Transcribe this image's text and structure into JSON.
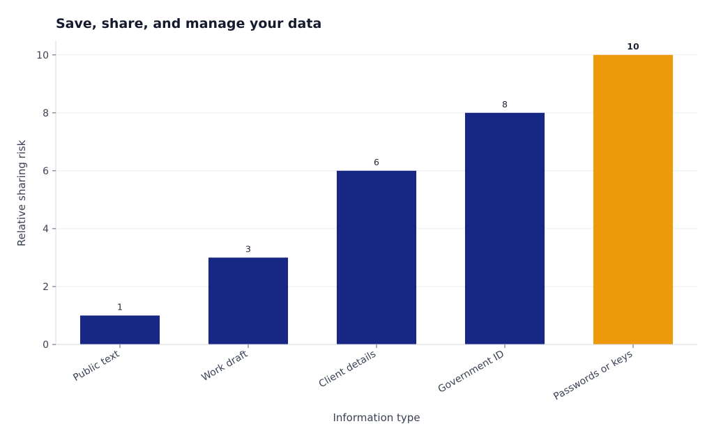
{
  "chart_data": {
    "type": "bar",
    "title": "Save, share, and manage your data",
    "xlabel": "Information type",
    "ylabel": "Relative sharing risk",
    "categories": [
      "Public text",
      "Work draft",
      "Client details",
      "Government ID",
      "Passwords or keys"
    ],
    "values": [
      1,
      3,
      6,
      8,
      10
    ],
    "data_labels": [
      "1",
      "3",
      "6",
      "8",
      "10"
    ],
    "ylim": [
      0,
      10.5
    ],
    "yticks": [
      0,
      2,
      4,
      6,
      8,
      10
    ],
    "ytick_labels": [
      "0",
      "2",
      "4",
      "6",
      "8",
      "10"
    ],
    "grid": "horizontal",
    "colors": {
      "bar": "#172884",
      "highlight": "#ec9a0c",
      "highlight_label": "#e39a10",
      "grid": "#eceef2",
      "axis": "#d8dbe2"
    },
    "highlight_index": 4
  }
}
